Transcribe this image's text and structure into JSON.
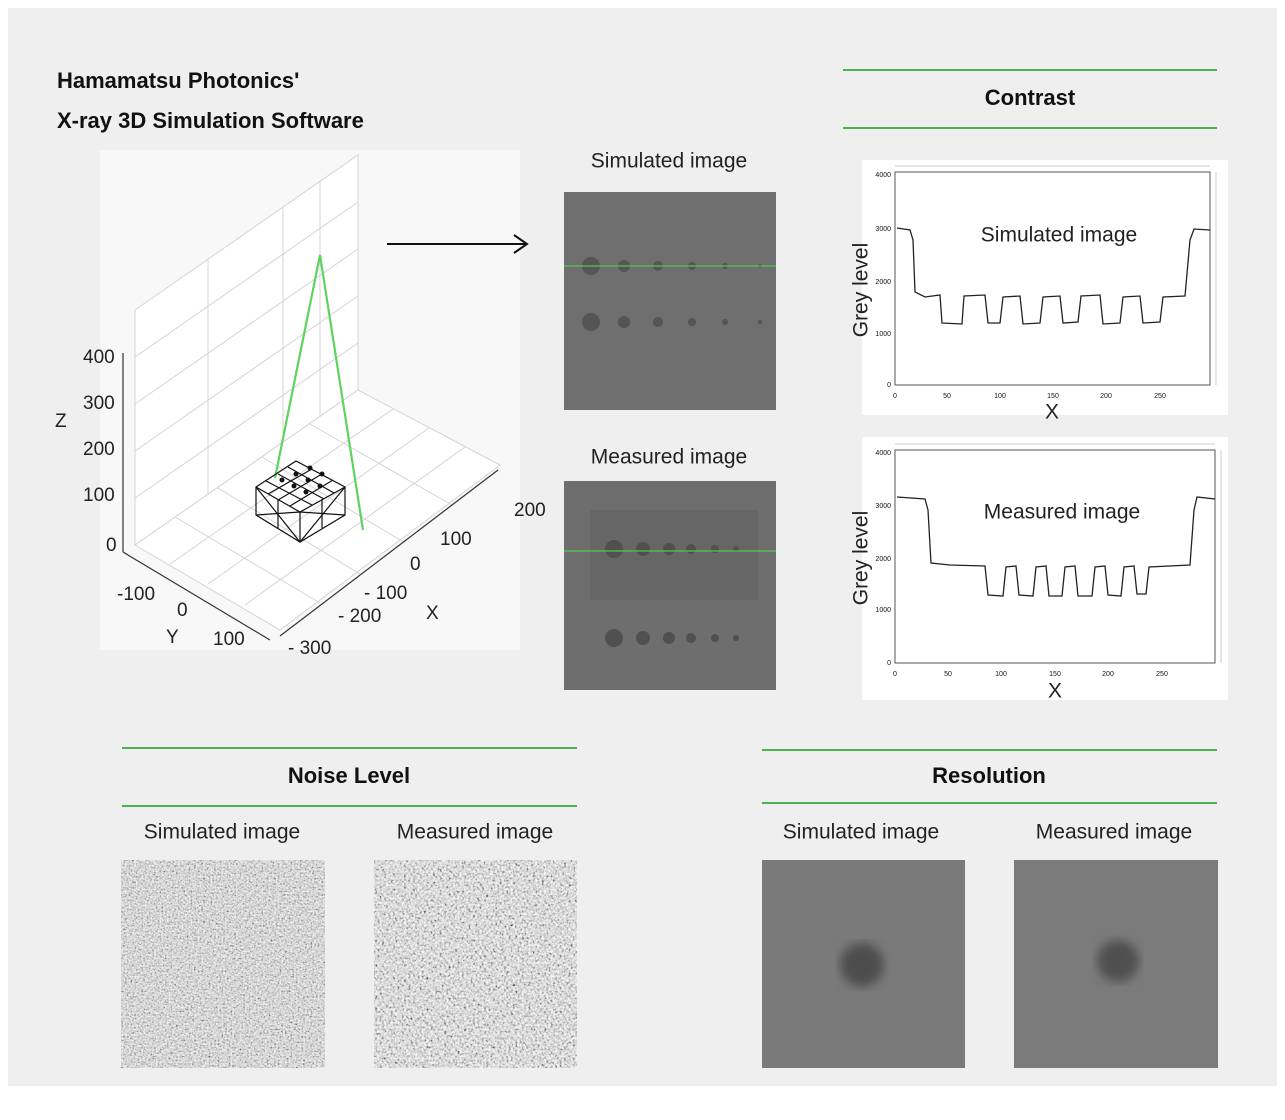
{
  "header": {
    "title_lines": [
      "Hamamatsu Photonics'",
      "X-ray 3D Simulation Software"
    ]
  },
  "plot3d": {
    "z_label": "Z",
    "x_label": "X",
    "y_label": "Y",
    "z_ticks": [
      "400",
      "300",
      "200",
      "100",
      "0"
    ],
    "x_ticks": [
      "200",
      "100",
      "0",
      "- 100",
      "- 200",
      "- 300"
    ],
    "y_ticks": [
      "-100",
      "0",
      "100"
    ]
  },
  "images": {
    "simulated": "Simulated image",
    "measured": "Measured image"
  },
  "contrast": {
    "title": "Contrast",
    "graphs": [
      {
        "label": "Simulated image",
        "y_label": "Grey level",
        "x_label": "X",
        "y_ticks": [
          "4000",
          "3000",
          "2000",
          "1000",
          "0"
        ],
        "x_ticks": [
          "0",
          "50",
          "100",
          "150",
          "200",
          "250"
        ]
      },
      {
        "label": "Measured image",
        "y_label": "Grey level",
        "x_label": "X",
        "y_ticks": [
          "4000",
          "3000",
          "2000",
          "1000",
          "0"
        ],
        "x_ticks": [
          "0",
          "50",
          "100",
          "150",
          "200",
          "250"
        ]
      }
    ]
  },
  "noise": {
    "title": "Noise Level",
    "captions": [
      "Simulated image",
      "Measured image"
    ]
  },
  "resolution": {
    "title": "Resolution",
    "captions": [
      "Simulated image",
      "Measured image"
    ]
  }
}
